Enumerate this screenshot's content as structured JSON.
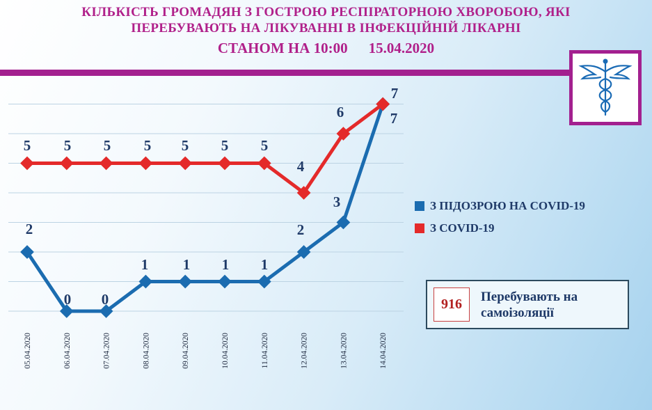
{
  "header": {
    "title_line1": "КІЛЬКІСТЬ  ГРОМАДЯН  З ГОСТРОЮ РЕСПІРАТОРНОЮ ХВОРОБОЮ, ЯКІ",
    "title_line2": "ПЕРЕБУВАЮТЬ НА ЛІКУВАННІ В ІНФЕКЦІЙНІЙ  ЛІКАРНІ",
    "status_label": "СТАНОМ  НА 10:00",
    "status_date": "15.04.2020"
  },
  "logo": {
    "icon": "caduceus-icon",
    "color": "#1a6bb5"
  },
  "colors": {
    "accent": "#a3208f",
    "title": "#b0208a",
    "covid": "#e42a2a",
    "suspected": "#1b6cb0",
    "text": "#1f3a68"
  },
  "chart_data": {
    "type": "line",
    "title": "КІЛЬКІСТЬ ГРОМАДЯН З ГОСТРОЮ РЕСПІРАТОРНОЮ ХВОРОБОЮ, ЯКІ ПЕРЕБУВАЮТЬ НА ЛІКУВАННІ В ІНФЕКЦІЙНІЙ ЛІКАРНІ",
    "categories": [
      "05.04.2020",
      "06.04.2020",
      "07.04.2020",
      "08.04.2020",
      "09.04.2020",
      "10.04.2020",
      "11.04.2020",
      "12.04.2020",
      "13.04.2020",
      "14.04.2020"
    ],
    "series": [
      {
        "name": "З ПІДОЗРОЮ НА COVID-19",
        "color": "#1b6cb0",
        "values": [
          2,
          0,
          0,
          1,
          1,
          1,
          1,
          2,
          3,
          7
        ]
      },
      {
        "name": "З COVID-19",
        "color": "#e42a2a",
        "values": [
          5,
          5,
          5,
          5,
          5,
          5,
          5,
          4,
          6,
          7
        ]
      }
    ],
    "ylim": [
      0,
      7
    ],
    "grid": true,
    "legend_position": "right",
    "data_labels": true
  },
  "info": {
    "count": "916",
    "label": "Перебувають на самоізоляції"
  }
}
